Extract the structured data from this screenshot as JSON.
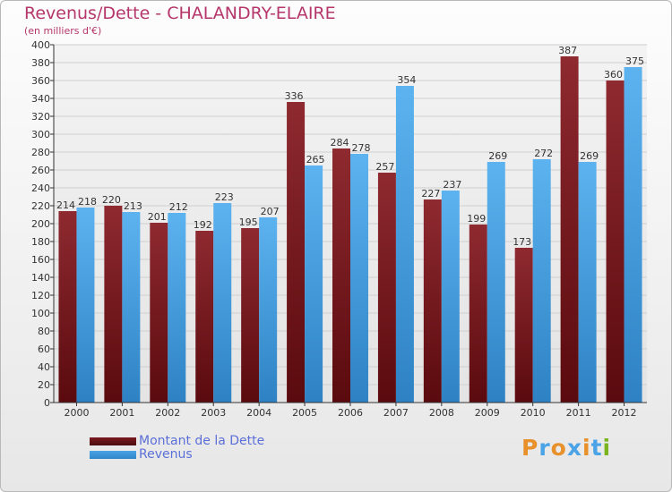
{
  "header": {
    "title": "Revenus/Dette - CHALANDRY-ELAIRE",
    "subtitle": "(en milliers d'€)"
  },
  "legend": {
    "items": [
      {
        "label": "Montant de la Dette",
        "color": "#7a1a1f"
      },
      {
        "label": "Revenus",
        "color": "#4aa3e6"
      }
    ]
  },
  "logo": {
    "text": "Proxiti",
    "colors": [
      "#e8902a",
      "#4aa3e6",
      "#e8902a",
      "#4aa3e6",
      "#e8902a",
      "#4aa3e6",
      "#7ab51d"
    ]
  },
  "colors": {
    "dette": "#7a1a1f",
    "revenus": "#4aa3e6",
    "title": "#b5366a",
    "axis": "#333333",
    "grid": "#cfcfcf"
  },
  "chart_data": {
    "type": "bar",
    "title": "Revenus/Dette - CHALANDRY-ELAIRE",
    "subtitle": "(en milliers d'€)",
    "xlabel": "",
    "ylabel": "",
    "ylim": [
      0,
      400
    ],
    "ytick_step": 20,
    "grid": true,
    "legend_position": "bottom-left",
    "categories": [
      "2000",
      "2001",
      "2002",
      "2003",
      "2004",
      "2005",
      "2006",
      "2007",
      "2008",
      "2009",
      "2010",
      "2011",
      "2012"
    ],
    "series": [
      {
        "name": "Montant de la Dette",
        "values": [
          214,
          220,
          201,
          192,
          195,
          336,
          284,
          257,
          227,
          199,
          173,
          387,
          360
        ]
      },
      {
        "name": "Revenus",
        "values": [
          218,
          213,
          212,
          223,
          207,
          265,
          278,
          354,
          237,
          269,
          272,
          269,
          375
        ]
      }
    ]
  }
}
